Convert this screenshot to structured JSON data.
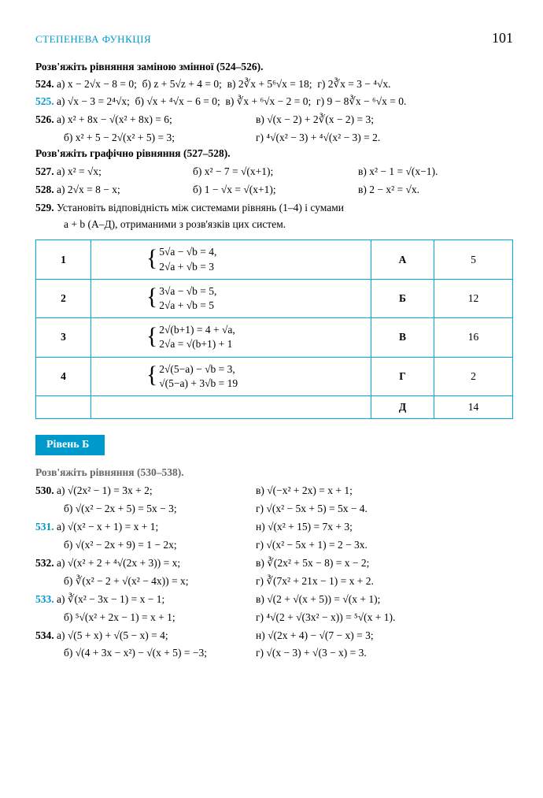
{
  "header": {
    "section": "СТЕПЕНЕВА ФУНКЦІЯ",
    "page": "101"
  },
  "intro524": "Розв'яжіть рівняння заміною змінної (524–526).",
  "p524": {
    "num": "524.",
    "a": "а) x − 2√x − 8 = 0;",
    "b": "б) z + 5√z + 4 = 0;",
    "v": "в) 2∛x + 5⁶√x = 18;",
    "g": "г) 2∛x = 3 − ⁴√x."
  },
  "p525": {
    "num": "525.",
    "a": "а) √x − 3 = 2⁴√x;",
    "b": "б) √x + ⁴√x − 6 = 0;",
    "v": "в) ∛x + ⁶√x − 2 = 0;",
    "g": "г) 9 − 8∛x − ⁶√x = 0."
  },
  "p526": {
    "num": "526.",
    "a": "а) x² + 8x − √(x² + 8x) = 6;",
    "v": "в) √(x − 2) + 2∛(x − 2) = 3;",
    "b": "б) x² + 5 − 2√(x² + 5) = 3;",
    "g": "г) ⁴√(x² − 3) + ⁴√(x² − 3) = 2."
  },
  "intro527": "Розв'яжіть графічно рівняння (527–528).",
  "p527": {
    "num": "527.",
    "a": "а) x² = √x;",
    "b": "б) x² − 7 = √(x+1);",
    "v": "в) x² − 1 = √(x−1)."
  },
  "p528": {
    "num": "528.",
    "a": "а) 2√x = 8 − x;",
    "b": "б) 1 − √x = √(x+1);",
    "v": "в) 2 − x² = √x."
  },
  "p529": {
    "num": "529.",
    "text1": "Установіть відповідність між системами рівнянь (1–4) і сумами",
    "text2": "a + b (А–Д), отриманими з розв'язків цих систем."
  },
  "table": {
    "rows": [
      {
        "n": "1",
        "sys1": "5√a − √b = 4,",
        "sys2": "2√a + √b = 3",
        "letter": "А",
        "val": "5"
      },
      {
        "n": "2",
        "sys1": "3√a − √b = 5,",
        "sys2": "2√a + √b = 5",
        "letter": "Б",
        "val": "12"
      },
      {
        "n": "3",
        "sys1": "2√(b+1) = 4 + √a,",
        "sys2": "2√a = √(b+1) + 1",
        "letter": "В",
        "val": "16"
      },
      {
        "n": "4",
        "sys1": "2√(5−a) − √b = 3,",
        "sys2": "√(5−a) + 3√b = 19",
        "letter": "Г",
        "val": "2"
      },
      {
        "n": "",
        "sys1": "",
        "sys2": "",
        "letter": "Д",
        "val": "14"
      }
    ]
  },
  "levelB": "Рівень Б",
  "intro530": "Розв'яжіть рівняння (530–538).",
  "p530": {
    "num": "530.",
    "a": "а) √(2x² − 1) = 3x + 2;",
    "v": "в) √(−x² + 2x) = x + 1;",
    "b": "б) √(x² − 2x + 5) = 5x − 3;",
    "g": "г) √(x² − 5x + 5) = 5x − 4."
  },
  "p531": {
    "num": "531.",
    "a": "а) √(x² − x + 1) = x + 1;",
    "n": "н) √(x² + 15) = 7x + 3;",
    "b": "б) √(x² − 2x + 9) = 1 − 2x;",
    "g": "г) √(x² − 5x + 1) = 2 − 3x."
  },
  "p532": {
    "num": "532.",
    "a": "а) √(x² + 2 + ⁴√(2x + 3)) = x;",
    "v": "в) ∛(2x² + 5x − 8) = x − 2;",
    "b": "б) ∛(x² − 2 + √(x² − 4x)) = x;",
    "g": "г) ∛(7x² + 21x − 1) = x + 2."
  },
  "p533": {
    "num": "533.",
    "a": "а) ∛(x² − 3x − 1) = x − 1;",
    "v": "в) √(2 + √(x + 5)) = √(x + 1);",
    "b": "б) ⁵√(x² + 2x − 1) = x + 1;",
    "g": "г) ⁴√(2 + √(3x² − x)) = ⁵√(x + 1)."
  },
  "p534": {
    "num": "534.",
    "a": "а) √(5 + x) + √(5 − x) = 4;",
    "n": "н) √(2x + 4) − √(7 − x) = 3;",
    "b": "б) √(4 + 3x − x²) − √(x + 5) = −3;",
    "g": "г) √(x − 3) + √(3 − x) = 3."
  },
  "colors": {
    "accent": "#0099cc",
    "border": "#00aadd",
    "text": "#000000",
    "background": "#ffffff"
  }
}
